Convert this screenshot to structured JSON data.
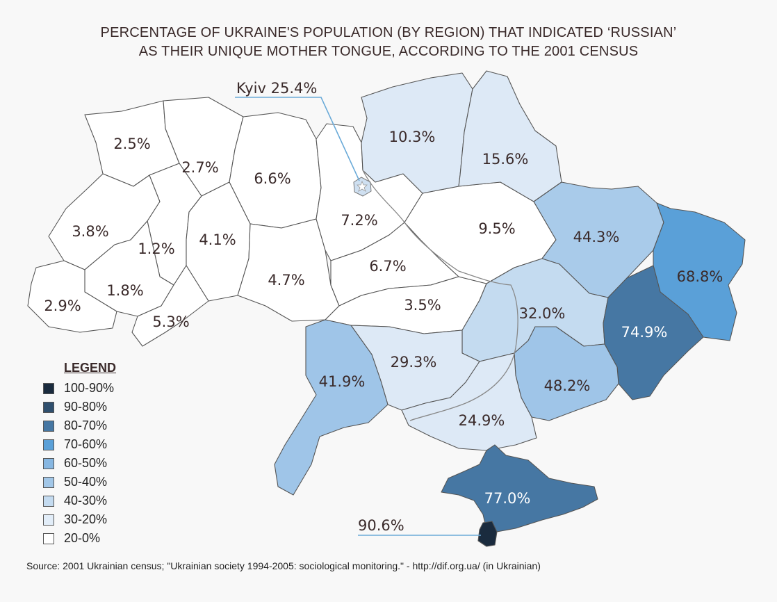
{
  "title": {
    "line1": "PERCENTAGE OF UKRAINE'S POPULATION (BY REGION) THAT INDICATED ‘RUSSIAN’",
    "line2": "AS THEIR UNIQUE MOTHER TONGUE, ACCORDING TO THE 2001 CENSUS"
  },
  "callouts": {
    "kyiv": "Kyiv 25.4%",
    "sevastopol": "90.6%"
  },
  "regions": [
    {
      "label": "2.5%",
      "value": 2.5,
      "fill": "#ffffff"
    },
    {
      "label": "2.7%",
      "value": 2.7,
      "fill": "#ffffff"
    },
    {
      "label": "6.6%",
      "value": 6.6,
      "fill": "#ffffff"
    },
    {
      "label": "3.8%",
      "value": 3.8,
      "fill": "#ffffff"
    },
    {
      "label": "1.2%",
      "value": 1.2,
      "fill": "#ffffff"
    },
    {
      "label": "4.1%",
      "value": 4.1,
      "fill": "#ffffff"
    },
    {
      "label": "1.8%",
      "value": 1.8,
      "fill": "#ffffff"
    },
    {
      "label": "2.9%",
      "value": 2.9,
      "fill": "#ffffff"
    },
    {
      "label": "5.3%",
      "value": 5.3,
      "fill": "#ffffff"
    },
    {
      "label": "4.7%",
      "value": 4.7,
      "fill": "#ffffff"
    },
    {
      "label": "7.2%",
      "value": 7.2,
      "fill": "#ffffff"
    },
    {
      "label": "6.7%",
      "value": 6.7,
      "fill": "#ffffff"
    },
    {
      "label": "3.5%",
      "value": 3.5,
      "fill": "#ffffff"
    },
    {
      "label": "9.5%",
      "value": 9.5,
      "fill": "#ffffff"
    },
    {
      "label": "10.3%",
      "value": 10.3,
      "fill": "#dde9f6"
    },
    {
      "label": "15.6%",
      "value": 15.6,
      "fill": "#dde9f6"
    },
    {
      "label": "44.3%",
      "value": 44.3,
      "fill": "#a9cbea"
    },
    {
      "label": "68.8%",
      "value": 68.8,
      "fill": "#5aa0d8"
    },
    {
      "label": "32.0%",
      "value": 32.0,
      "fill": "#c4dbf0"
    },
    {
      "label": "74.9%",
      "value": 74.9,
      "fill": "#4677a3"
    },
    {
      "label": "29.3%",
      "value": 29.3,
      "fill": "#dde9f6"
    },
    {
      "label": "41.9%",
      "value": 41.9,
      "fill": "#9fc5e8"
    },
    {
      "label": "48.2%",
      "value": 48.2,
      "fill": "#9fc5e8"
    },
    {
      "label": "24.9%",
      "value": 24.9,
      "fill": "#dde9f6"
    },
    {
      "label": "77.0%",
      "value": 77.0,
      "fill": "#4677a3"
    }
  ],
  "legend": {
    "title": "LEGEND",
    "items": [
      {
        "label": "100-90%",
        "color": "#1a2b3e"
      },
      {
        "label": "90-80%",
        "color": "#2f4f6e"
      },
      {
        "label": "80-70%",
        "color": "#4677a3"
      },
      {
        "label": "70-60%",
        "color": "#5aa0d8"
      },
      {
        "label": "60-50%",
        "color": "#87b7e2"
      },
      {
        "label": "50-40%",
        "color": "#a2c7e8"
      },
      {
        "label": "40-30%",
        "color": "#c4dbf0"
      },
      {
        "label": "30-20%",
        "color": "#e2edf8"
      },
      {
        "label": "20-0%",
        "color": "#ffffff"
      }
    ]
  },
  "source": "Source:  2001 Ukrainian census; \"Ukrainian society 1994-2005: sociological monitoring.\" - http://dif.org.ua/ (in Ukrainian)"
}
